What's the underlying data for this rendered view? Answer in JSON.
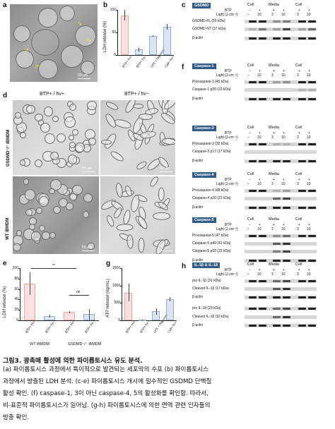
{
  "panels": {
    "a": {
      "label": "a",
      "scalebar": "20 μm"
    },
    "b": {
      "label": "b"
    },
    "c": {
      "label": "c",
      "header": "GSDMD"
    },
    "d": {
      "label": "d",
      "col1": "BTP+ / hv+",
      "col2": "BTP+ / hv−",
      "row1": "GSDMD⁻/⁻ iBMDM",
      "row2": "WT iBMDM",
      "scalebar": "50 μm"
    },
    "e": {
      "label": "e"
    },
    "f": {
      "label": "f"
    },
    "g": {
      "label": "g"
    },
    "h": {
      "label": "h"
    }
  },
  "blot_common": {
    "col_cell": "Cell",
    "col_media": "Media",
    "col_cell2": "Cell",
    "btp": "BTP",
    "light": "Light (J·cm⁻²)",
    "btp_row": [
      "−",
      "+",
      "+",
      "+",
      "+",
      "+"
    ],
    "light_row": [
      "−",
      "10",
      "3",
      "10",
      "3",
      "10"
    ],
    "actin": "β-actin"
  },
  "blot_c": {
    "rows": [
      "GSDMD-FL (55 kDa)",
      "GSDMD-NT (37 kDa)"
    ]
  },
  "blot_f": {
    "casp1": {
      "header": "Caspase-1",
      "rows": [
        "Procaspase-1 (45 kDa)",
        "Caspase-1 p20 (23 kDa)"
      ]
    },
    "casp3": {
      "header": "Caspase-3",
      "rows": [
        "Procaspase-3 (32 kDa)",
        "Caspase-3 p17 (17 kDa)"
      ]
    },
    "casp4": {
      "header": "Caspase-4",
      "rows": [
        "Procaspase-4 (48 kDa)",
        "Caspase-4 p20 (22 kDa)"
      ]
    },
    "casp5": {
      "header": "Caspase-5",
      "rows": [
        "Procaspase-5 (47 kDa)",
        "Caspase-5 p40 (42 kDa)",
        "Caspase-5 p20 (22 kDa)"
      ]
    }
  },
  "blot_h": {
    "header": "IL-1β & IL-18",
    "rows1": [
      "pro IL-1β (31 kDa)",
      "Cleaved IL-1β (17 kDa)"
    ],
    "rows2": [
      "pro IL-18 (23 kDa)",
      "Cleaved IL-18 (16 kDa)"
    ]
  },
  "chart_data": [
    {
      "panel": "b",
      "type": "bar",
      "categories": [
        "BTP+ hv+",
        "BTP+ hv−",
        "LPS + Nigericin",
        "Cell+ hv+"
      ],
      "values": [
        88,
        12,
        42,
        62
      ],
      "errors": [
        12,
        4,
        2,
        6
      ],
      "colors": [
        "#f4a6a0",
        "#8fb0d4",
        "#8fb0d4",
        "#8fb0d4"
      ],
      "ylabel": "LDH release (%)",
      "ylim": [
        0,
        100
      ],
      "yticks": [
        0,
        50,
        100
      ]
    },
    {
      "panel": "e",
      "type": "bar",
      "groups": [
        "WT iBMDM",
        "GSDMD⁻/⁻ iBMDM"
      ],
      "categories": [
        "BTP+ hv+",
        "BTP+ hv−",
        "BTP+ hv+",
        "BTP+ hv−"
      ],
      "values": [
        70,
        8,
        16,
        12
      ],
      "errors": [
        22,
        3,
        2,
        10
      ],
      "colors": [
        "#f4a6a0",
        "#8fb0d4",
        "#f4a6a0",
        "#8fb0d4"
      ],
      "ylabel": "LDH release (%)",
      "ylim": [
        0,
        100
      ],
      "yticks": [
        0,
        20,
        40,
        60,
        80,
        100
      ],
      "annotations": [
        "**",
        "ns"
      ]
    },
    {
      "panel": "g",
      "type": "bar",
      "categories": [
        "BTP+ hv+",
        "BTP+ hv−",
        "LPS + Nigericin",
        "Cell+ hv+"
      ],
      "values": [
        800,
        20,
        260,
        610
      ],
      "errors": [
        250,
        10,
        90,
        60
      ],
      "colors": [
        "#f4a6a0",
        "#8fb0d4",
        "#8fb0d4",
        "#8fb0d4"
      ],
      "ylabel": "ATP release (ng/mL)",
      "ylim": [
        0,
        1500
      ],
      "yticks": [
        0,
        500,
        1000,
        1500
      ]
    }
  ],
  "caption": {
    "title": "그림3. 광촉매 활성에 의한 파이롭토시스 유도 분석.",
    "line1": "(a) 파이롭토시스 과정에서 특이적으로 발견되는 세포막의 수포 (b) 파이롭토시스",
    "line2": "과정에서 방출된 LDH 분석. (c-e) 파이롭토시스 개시에 필수적인 GSDMD 단백질",
    "line3": "활성 확인. (f) caspase-1, 3이 아닌 caspase-4, 5의 활성화를 확인함. 따라서,",
    "line4": "비-표준적 파이롭토시스가 일어남. (g-h) 파이롭토시스에 의한 면역 관련 인자들의",
    "line5": "방출 확인."
  }
}
